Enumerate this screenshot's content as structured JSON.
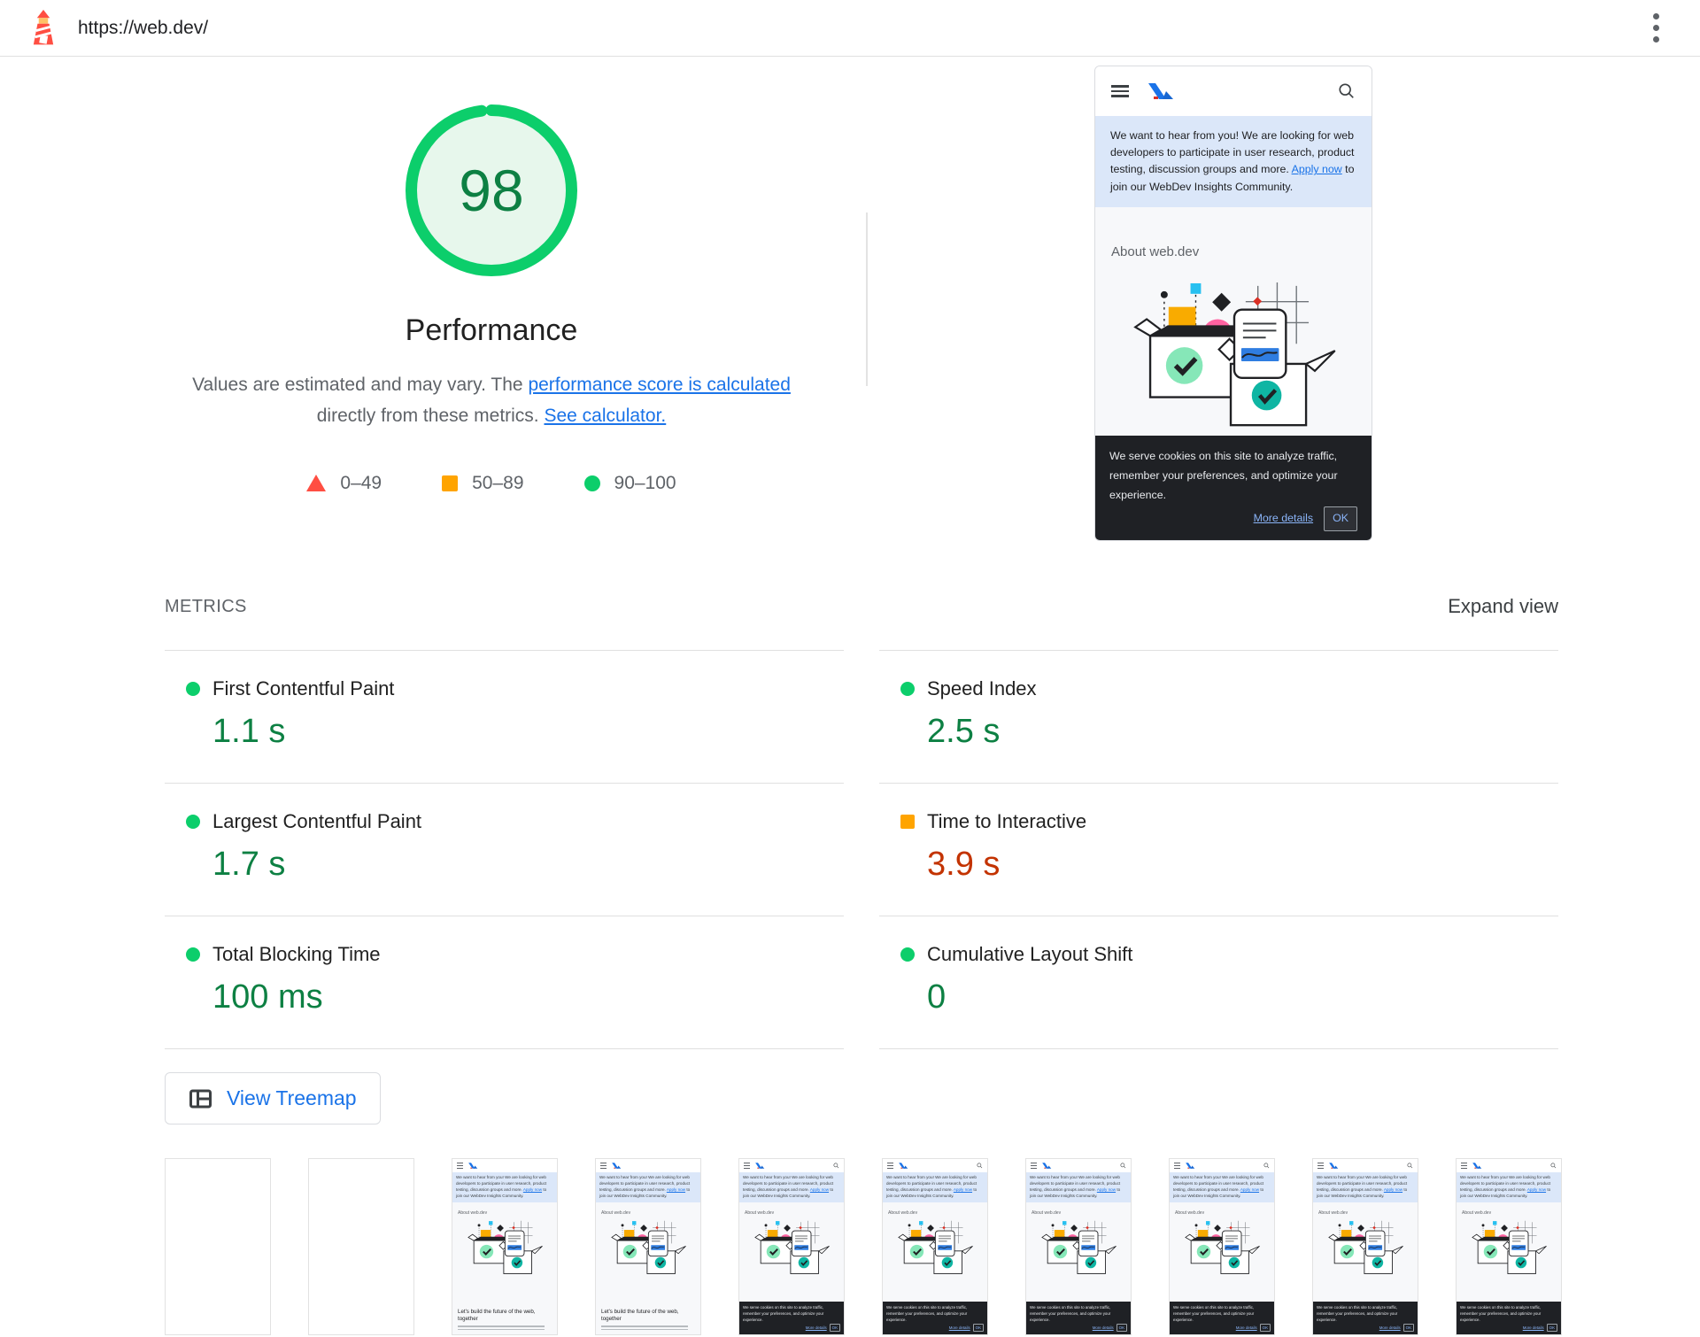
{
  "topbar": {
    "url": "https://web.dev/"
  },
  "summary": {
    "score": "98",
    "category": "Performance",
    "description": {
      "text1": "Values are estimated and may vary. The ",
      "link1": "performance score is calculated",
      "text2": " directly from these metrics. ",
      "link2": "See calculator."
    },
    "legend": [
      {
        "label": "0–49",
        "shape": "triangle",
        "color": "#ff4e42"
      },
      {
        "label": "50–89",
        "shape": "square",
        "color": "#ffa400"
      },
      {
        "label": "90–100",
        "shape": "circle",
        "color": "#0cce6b"
      }
    ]
  },
  "screenshot_mock": {
    "banner": {
      "text1": "We want to hear from you! We are looking for web developers to participate in user research, product testing, discussion groups and more. ",
      "link": "Apply now",
      "text2": " to join our WebDev Insights Community."
    },
    "about_heading": "About web.dev",
    "hero_title": "Let's build the future of the web, together",
    "cookie": {
      "text": "We serve cookies on this site to analyze traffic, remember your preferences, and optimize your experience.",
      "link": "More details",
      "ok": "OK"
    }
  },
  "metrics": {
    "section_title": "METRICS",
    "expand_label": "Expand view",
    "items": [
      {
        "label": "First Contentful Paint",
        "value": "1.1 s",
        "rating": "good",
        "bullet_class": "m-bullet b-circle",
        "value_class": "m-value v-good"
      },
      {
        "label": "Largest Contentful Paint",
        "value": "1.7 s",
        "rating": "good",
        "bullet_class": "m-bullet b-circle",
        "value_class": "m-value v-good"
      },
      {
        "label": "Total Blocking Time",
        "value": "100 ms",
        "rating": "good",
        "bullet_class": "m-bullet b-circle",
        "value_class": "m-value v-good"
      },
      {
        "label": "Speed Index",
        "value": "2.5 s",
        "rating": "good",
        "bullet_class": "m-bullet b-circle",
        "value_class": "m-value v-good"
      },
      {
        "label": "Time to Interactive",
        "value": "3.9 s",
        "rating": "average",
        "bullet_class": "m-bullet b-square",
        "value_class": "m-value v-avg"
      },
      {
        "label": "Cumulative Layout Shift",
        "value": "0",
        "rating": "good",
        "bullet_class": "m-bullet b-circle",
        "value_class": "m-value v-good"
      }
    ]
  },
  "treemap": {
    "label": "View Treemap"
  },
  "filmstrip": {
    "frames": [
      {
        "variant": "blank"
      },
      {
        "variant": "blank"
      },
      {
        "variant": "hero"
      },
      {
        "variant": "hero"
      },
      {
        "variant": "cookie"
      },
      {
        "variant": "cookie"
      },
      {
        "variant": "cookie"
      },
      {
        "variant": "cookie"
      },
      {
        "variant": "cookie"
      },
      {
        "variant": "cookie"
      }
    ]
  },
  "colors": {
    "good_green": "#0cce6b",
    "good_text": "#0d8043",
    "average_orange": "#ffa400",
    "average_text": "#c33300",
    "fail_red": "#ff4e42",
    "link_blue": "#1a73e8"
  }
}
